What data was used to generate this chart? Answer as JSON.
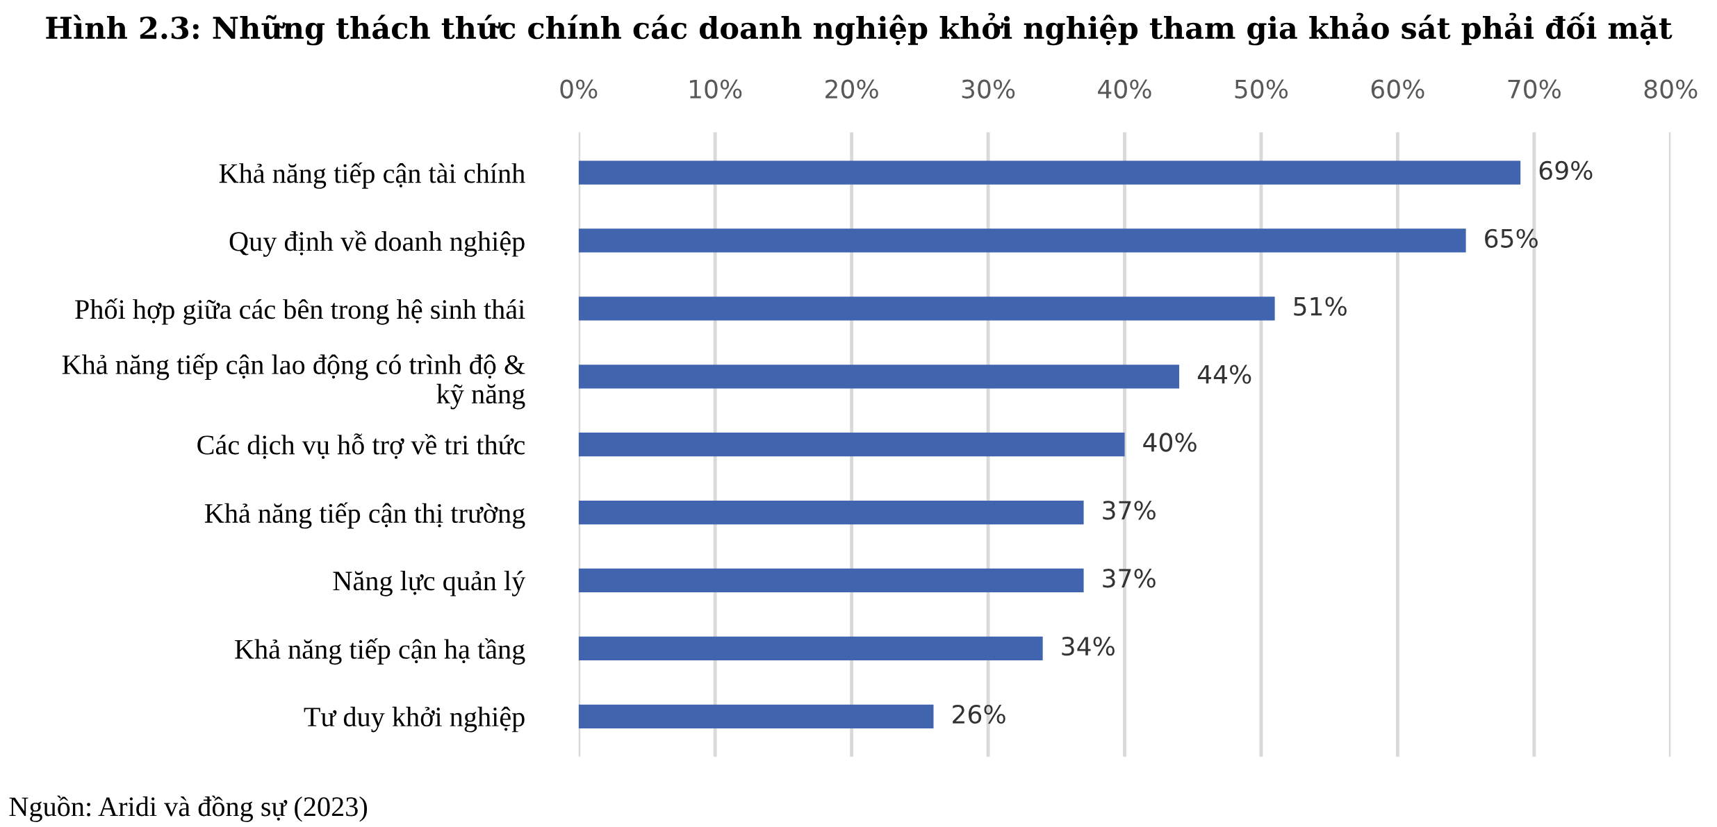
{
  "chart_data": {
    "type": "bar",
    "orientation": "horizontal",
    "title": "Hình 2.3: Những thách thức chính các doanh nghiệp khởi nghiệp tham gia khảo sát phải đối mặt",
    "categories": [
      "Khả năng tiếp cận tài chính",
      "Quy định về doanh nghiệp",
      "Phối hợp giữa các bên trong hệ sinh thái",
      "Khả năng tiếp cận lao động có trình độ &\nkỹ năng",
      "Các dịch vụ hỗ trợ về tri thức",
      "Khả năng tiếp cận thị trường",
      "Năng lực quản lý",
      "Khả năng tiếp cận hạ tầng",
      "Tư duy khởi nghiệp"
    ],
    "values": [
      69,
      65,
      51,
      44,
      40,
      37,
      37,
      34,
      26
    ],
    "value_labels": [
      "69%",
      "65%",
      "51%",
      "44%",
      "40%",
      "37%",
      "37%",
      "34%",
      "26%"
    ],
    "color": "#4064ad",
    "xlim": [
      0,
      80
    ],
    "xticks": [
      {
        "value": 0,
        "label": "0%"
      },
      {
        "value": 10,
        "label": "10%"
      },
      {
        "value": 20,
        "label": "20%"
      },
      {
        "value": 30,
        "label": "30%"
      },
      {
        "value": 40,
        "label": "40%"
      },
      {
        "value": 50,
        "label": "50%"
      },
      {
        "value": 60,
        "label": "60%"
      },
      {
        "value": 70,
        "label": "70%"
      },
      {
        "value": 80,
        "label": "80%"
      }
    ],
    "grid": "x",
    "annotations": [
      "Nguồn: Aridi và đồng sự (2023)"
    ]
  }
}
